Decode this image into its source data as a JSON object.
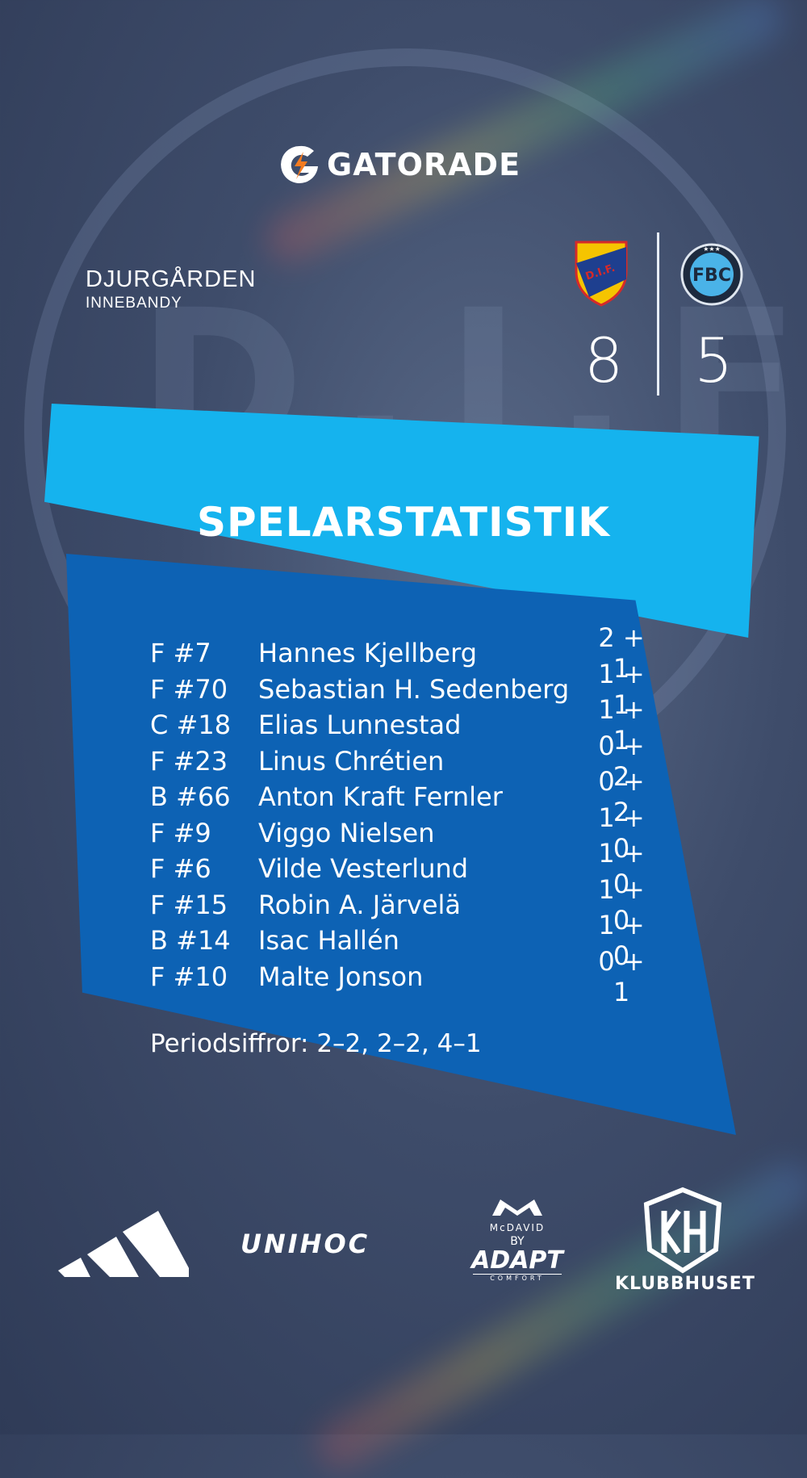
{
  "sponsor_top": {
    "brand": "GATORADE",
    "icon": "gatorade-g-bolt-icon"
  },
  "team": {
    "name": "DJURGÅRDEN",
    "sport": "INNEBANDY"
  },
  "match": {
    "home_crest": {
      "text": "D.I.F.",
      "colors": [
        "#f5c400",
        "#1e3f8f",
        "#d52a2a"
      ]
    },
    "away_crest": {
      "text": "FBC"
    },
    "home_score": "8",
    "away_score": "5"
  },
  "stats": {
    "title": "SPELARSTATISTIK",
    "players": [
      {
        "pos": "F #7",
        "name": "Hannes Kjellberg",
        "points": "2 + 1"
      },
      {
        "pos": "F #70",
        "name": "Sebastian H. Sedenberg",
        "points": "1 + 1"
      },
      {
        "pos": "C #18",
        "name": "Elias Lunnestad",
        "points": "1 + 1"
      },
      {
        "pos": "F #23",
        "name": "Linus Chrétien",
        "points": "0 + 2"
      },
      {
        "pos": "B #66",
        "name": "Anton Kraft Fernler",
        "points": "0 + 2"
      },
      {
        "pos": "F #9",
        "name": "Viggo Nielsen",
        "points": "1 + 0"
      },
      {
        "pos": "F #6",
        "name": "Vilde Vesterlund",
        "points": "1 + 0"
      },
      {
        "pos": "F #15",
        "name": "Robin A. Järvelä",
        "points": "1 + 0"
      },
      {
        "pos": "B #14",
        "name": "Isac Hallén",
        "points": "1 + 0"
      },
      {
        "pos": "F #10",
        "name": "Malte Jonson",
        "points": "0 + 1"
      }
    ],
    "periods": "Periodsiffror: 2–2, 2–2, 4–1"
  },
  "sponsors_bottom": {
    "adidas": "adidas-logo-icon",
    "unihoc": "UNIHOC",
    "mcdavid": "McDAVID",
    "mcdavid_by": "BY",
    "adapt": "ADAPT",
    "adapt_sub": "COMFORT",
    "klubbhuset": "KLUBBHUSET"
  },
  "colors": {
    "accent_light": "#15b3ee",
    "panel": "#0d62b4",
    "background": "#3e4c6a"
  }
}
